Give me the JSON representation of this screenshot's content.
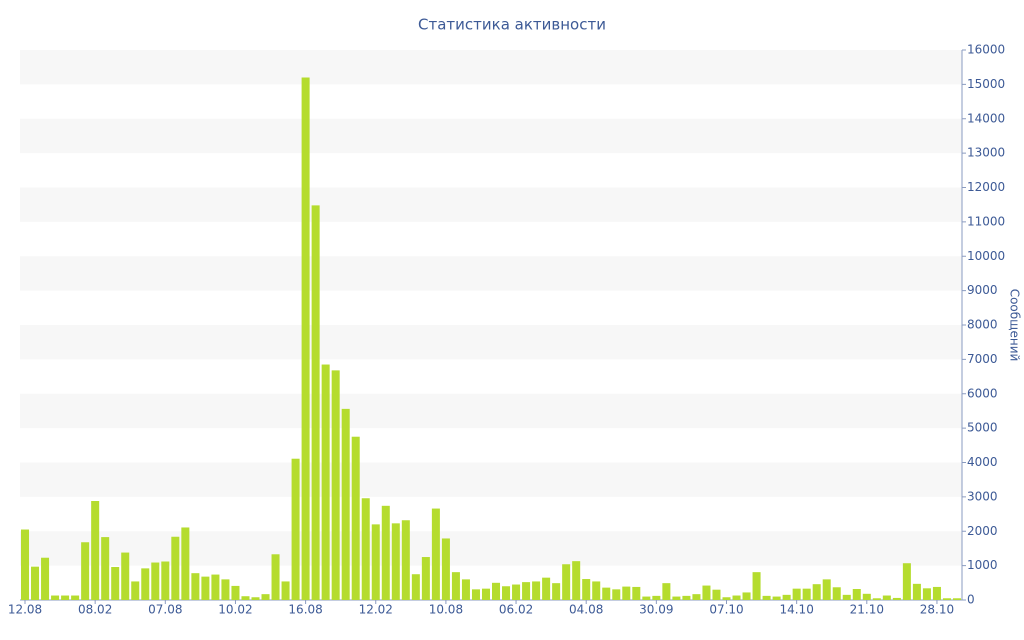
{
  "chart_data": {
    "type": "bar",
    "title": "Статистика активности",
    "y_label": "Сообщений",
    "categories": [
      "12.08",
      null,
      null,
      null,
      null,
      null,
      null,
      "08.02",
      null,
      null,
      null,
      null,
      null,
      null,
      "07.08",
      null,
      null,
      null,
      null,
      null,
      null,
      "10.02",
      null,
      null,
      null,
      null,
      null,
      null,
      "16.08",
      null,
      null,
      null,
      null,
      null,
      null,
      "12.02",
      null,
      null,
      null,
      null,
      null,
      null,
      "10.08",
      null,
      null,
      null,
      null,
      null,
      null,
      "06.02",
      null,
      null,
      null,
      null,
      null,
      null,
      "04.08",
      null,
      null,
      null,
      null,
      null,
      null,
      "30.09",
      null,
      null,
      null,
      null,
      null,
      null,
      "07.10",
      null,
      null,
      null,
      null,
      null,
      null,
      "14.10",
      null,
      null,
      null,
      null,
      null,
      null,
      "21.10",
      null,
      null,
      null,
      null,
      null,
      null,
      "28.10",
      null,
      null
    ],
    "values": [
      2050,
      970,
      1230,
      130,
      130,
      130,
      1680,
      2880,
      1830,
      960,
      1380,
      540,
      920,
      1090,
      1120,
      1840,
      2110,
      780,
      680,
      740,
      600,
      410,
      110,
      80,
      170,
      1330,
      540,
      4110,
      15200,
      11480,
      6850,
      6680,
      5560,
      4750,
      2960,
      2200,
      2740,
      2230,
      2320,
      750,
      1250,
      2660,
      1790,
      810,
      600,
      310,
      330,
      500,
      400,
      450,
      520,
      540,
      650,
      490,
      1040,
      1130,
      610,
      540,
      360,
      310,
      390,
      380,
      100,
      120,
      490,
      100,
      120,
      170,
      420,
      300,
      80,
      130,
      220,
      810,
      120,
      100,
      150,
      330,
      330,
      460,
      600,
      370,
      150,
      320,
      180,
      50,
      130,
      60,
      1070,
      470,
      340,
      380,
      50,
      50
    ],
    "color": "#b5dc2e",
    "ylim": [
      0,
      16000
    ],
    "yticks": [
      0,
      1000,
      2000,
      3000,
      4000,
      5000,
      6000,
      7000,
      8000,
      9000,
      10000,
      11000,
      12000,
      13000,
      14000,
      15000,
      16000
    ],
    "grid": true
  }
}
